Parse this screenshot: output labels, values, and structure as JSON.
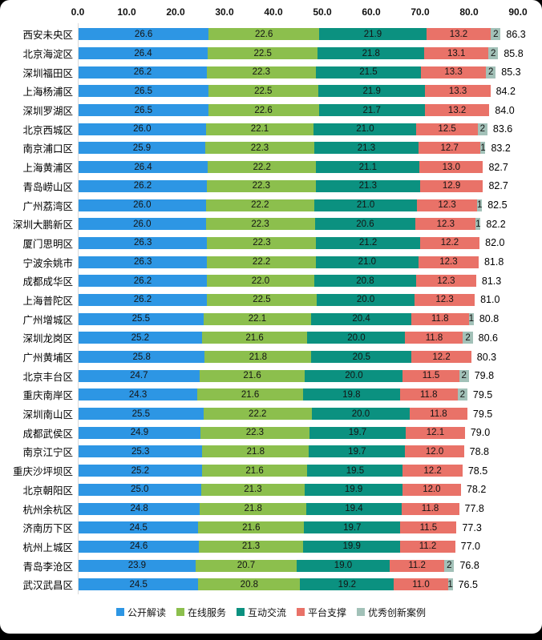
{
  "page": {
    "background_color": "#000000",
    "card_background_color": "#ffffff"
  },
  "chart_data": {
    "type": "bar",
    "orientation": "horizontal",
    "stacked": true,
    "title": "",
    "xlabel": "",
    "ylabel": "",
    "xlim": [
      0,
      90
    ],
    "axis_position": "top",
    "grid": false,
    "x_ticks": [
      "0.0",
      "10.0",
      "20.0",
      "30.0",
      "40.0",
      "50.0",
      "60.0",
      "70.0",
      "80.0",
      "90.0"
    ],
    "x_tick_values": [
      0,
      10,
      20,
      30,
      40,
      50,
      60,
      70,
      80,
      90
    ],
    "series_names": [
      "公开解读",
      "在线服务",
      "互动交流",
      "平台支撑",
      "优秀创新案例"
    ],
    "series_colors": [
      "#2D96E4",
      "#8CBF4D",
      "#0B9180",
      "#E97268",
      "#A2C1B8"
    ],
    "legend_position": "bottom",
    "rows": [
      {
        "label": "西安未央区",
        "values": [
          26.6,
          22.6,
          21.9,
          13.2,
          2
        ],
        "total": "86.3"
      },
      {
        "label": "北京海淀区",
        "values": [
          26.4,
          22.5,
          21.8,
          13.1,
          2
        ],
        "total": "85.8"
      },
      {
        "label": "深圳福田区",
        "values": [
          26.2,
          22.3,
          21.5,
          13.3,
          2
        ],
        "total": "85.3"
      },
      {
        "label": "上海杨浦区",
        "values": [
          26.5,
          22.5,
          21.9,
          13.3
        ],
        "total": "84.2"
      },
      {
        "label": "深圳罗湖区",
        "values": [
          26.5,
          22.6,
          21.7,
          13.2
        ],
        "total": "84.0"
      },
      {
        "label": "北京西城区",
        "values": [
          26.0,
          22.1,
          21.0,
          12.5,
          2
        ],
        "total": "83.6"
      },
      {
        "label": "南京浦口区",
        "values": [
          25.9,
          22.3,
          21.3,
          12.7,
          1
        ],
        "total": "83.2"
      },
      {
        "label": "上海黄浦区",
        "values": [
          26.4,
          22.2,
          21.1,
          13.0
        ],
        "total": "82.7"
      },
      {
        "label": "青岛崂山区",
        "values": [
          26.2,
          22.3,
          21.3,
          12.9
        ],
        "total": "82.7"
      },
      {
        "label": "广州荔湾区",
        "values": [
          26.0,
          22.2,
          21.0,
          12.3,
          1
        ],
        "total": "82.5"
      },
      {
        "label": "深圳大鹏新区",
        "values": [
          26.0,
          22.3,
          20.6,
          12.3,
          1
        ],
        "total": "82.2"
      },
      {
        "label": "厦门思明区",
        "values": [
          26.3,
          22.3,
          21.2,
          12.2
        ],
        "total": "82.0"
      },
      {
        "label": "宁波余姚市",
        "values": [
          26.3,
          22.2,
          21.0,
          12.3
        ],
        "total": "81.8"
      },
      {
        "label": "成都成华区",
        "values": [
          26.2,
          22.0,
          20.8,
          12.3
        ],
        "total": "81.3"
      },
      {
        "label": "上海普陀区",
        "values": [
          26.2,
          22.5,
          20.0,
          12.3
        ],
        "total": "81.0"
      },
      {
        "label": "广州增城区",
        "values": [
          25.5,
          22.1,
          20.4,
          11.8,
          1
        ],
        "total": "80.8"
      },
      {
        "label": "深圳龙岗区",
        "values": [
          25.2,
          21.6,
          20.0,
          11.8,
          2
        ],
        "total": "80.6"
      },
      {
        "label": "广州黄埔区",
        "values": [
          25.8,
          21.8,
          20.5,
          12.2
        ],
        "total": "80.3"
      },
      {
        "label": "北京丰台区",
        "values": [
          24.7,
          21.6,
          20.0,
          11.5,
          2
        ],
        "total": "79.8"
      },
      {
        "label": "重庆南岸区",
        "values": [
          24.3,
          21.6,
          19.8,
          11.8,
          2
        ],
        "total": "79.5"
      },
      {
        "label": "深圳南山区",
        "values": [
          25.5,
          22.2,
          20.0,
          11.8
        ],
        "total": "79.5"
      },
      {
        "label": "成都武侯区",
        "values": [
          24.9,
          22.3,
          19.7,
          12.1
        ],
        "total": "79.0"
      },
      {
        "label": "南京江宁区",
        "values": [
          25.3,
          21.8,
          19.7,
          12.0
        ],
        "total": "78.8"
      },
      {
        "label": "重庆沙坪坝区",
        "values": [
          25.2,
          21.6,
          19.5,
          12.2
        ],
        "total": "78.5"
      },
      {
        "label": "北京朝阳区",
        "values": [
          25.0,
          21.3,
          19.9,
          12.0
        ],
        "total": "78.2"
      },
      {
        "label": "杭州余杭区",
        "values": [
          24.8,
          21.8,
          19.4,
          11.8
        ],
        "total": "77.8"
      },
      {
        "label": "济南历下区",
        "values": [
          24.5,
          21.6,
          19.7,
          11.5
        ],
        "total": "77.3"
      },
      {
        "label": "杭州上城区",
        "values": [
          24.6,
          21.3,
          19.9,
          11.2
        ],
        "total": "77.0"
      },
      {
        "label": "青岛李沧区",
        "values": [
          23.9,
          20.7,
          19.0,
          11.2,
          2
        ],
        "total": "76.8"
      },
      {
        "label": "武汉武昌区",
        "values": [
          24.5,
          20.8,
          19.2,
          11.0,
          1
        ],
        "total": "76.5"
      }
    ]
  }
}
